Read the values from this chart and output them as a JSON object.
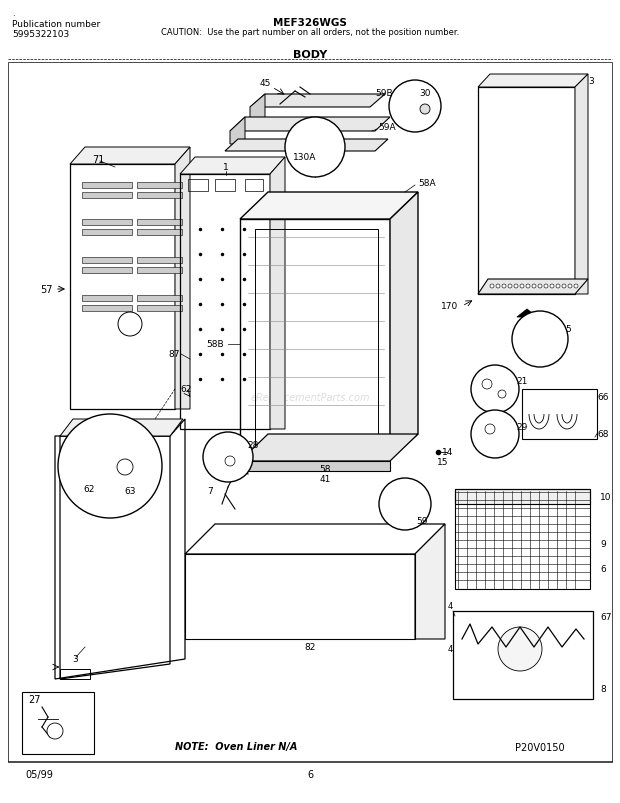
{
  "title": "MEF326WGS",
  "caution": "CAUTION:  Use the part number on all orders, not the position number.",
  "section": "BODY",
  "pub_number_label": "Publication number",
  "pub_number": "5995322103",
  "note": "NOTE:  Oven Liner N/A",
  "part_id": "P20V0150",
  "date": "05/99",
  "page": "6",
  "bg_color": "#ffffff",
  "text_color": "#000000",
  "figsize": [
    6.2,
    8.04
  ],
  "dpi": 100
}
